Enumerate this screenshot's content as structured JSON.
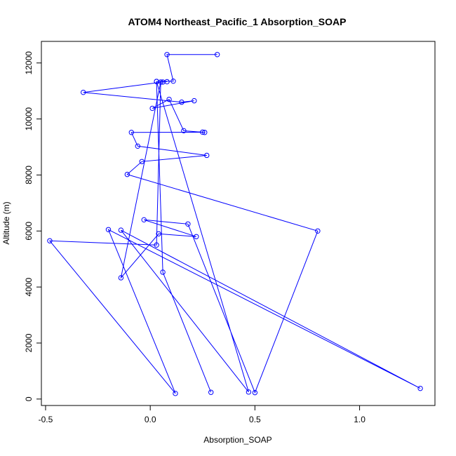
{
  "chart_data": {
    "type": "line",
    "title": "ATOM4 Northeast_Pacific_1 Absorption_SOAP",
    "xlabel": "Absorption_SOAP",
    "ylabel": "Altitude (m)",
    "xlim": [
      -0.52,
      1.36
    ],
    "ylim": [
      -230,
      12770
    ],
    "x_ticks": [
      -0.5,
      0.0,
      0.5,
      1.0
    ],
    "x_tick_labels": [
      "-0.5",
      "0.0",
      "0.5",
      "1.0"
    ],
    "y_ticks": [
      0,
      2000,
      4000,
      6000,
      8000,
      10000,
      12000
    ],
    "y_tick_labels": [
      "0",
      "2000",
      "4000",
      "6000",
      "8000",
      "10000",
      "12000"
    ],
    "grid": false,
    "series": [
      {
        "color": "#0000ff",
        "marker": "open-circle",
        "x": [
          0.32,
          0.08,
          0.11,
          0.03,
          0.08,
          0.06,
          -0.32,
          0.15,
          0.21,
          0.01,
          0.09,
          0.16,
          0.26,
          0.25,
          -0.09,
          -0.06,
          0.27,
          -0.04,
          -0.11,
          0.8,
          0.5,
          0.18,
          -0.03,
          0.22,
          0.04,
          -0.14,
          0.05,
          0.03,
          -0.48,
          0.12,
          -0.2,
          1.29,
          -0.14,
          0.47,
          0.03,
          0.06,
          0.29
        ],
        "y": [
          12300,
          12300,
          11350,
          11340,
          11330,
          11320,
          10950,
          10600,
          10650,
          10380,
          10700,
          9580,
          9520,
          9530,
          9520,
          9030,
          8700,
          8480,
          8020,
          6000,
          230,
          6250,
          6400,
          5800,
          5900,
          4330,
          11320,
          5500,
          5650,
          200,
          6050,
          380,
          6030,
          250,
          11340,
          4530,
          240
        ]
      }
    ]
  }
}
